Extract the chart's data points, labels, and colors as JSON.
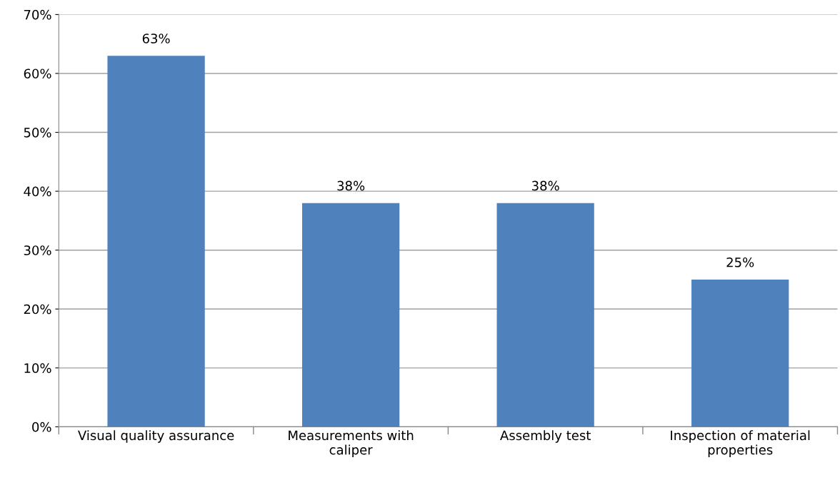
{
  "chart_data": {
    "type": "bar",
    "categories": [
      "Visual quality assurance",
      "Measurements with\ncaliper",
      "Assembly test",
      "Inspection of material\nproperties"
    ],
    "values": [
      63,
      38,
      38,
      25
    ],
    "value_labels": [
      "63%",
      "38%",
      "38%",
      "25%"
    ],
    "color": "#4f81bd",
    "ylim": [
      0,
      70
    ],
    "yticks": [
      {
        "value": 0,
        "label": "0%"
      },
      {
        "value": 10,
        "label": "10%"
      },
      {
        "value": 20,
        "label": "20%"
      },
      {
        "value": 30,
        "label": "30%"
      },
      {
        "value": 40,
        "label": "40%"
      },
      {
        "value": 50,
        "label": "50%"
      },
      {
        "value": 60,
        "label": "60%"
      },
      {
        "value": 70,
        "label": "70%"
      }
    ],
    "grid": "y",
    "legend": false
  }
}
